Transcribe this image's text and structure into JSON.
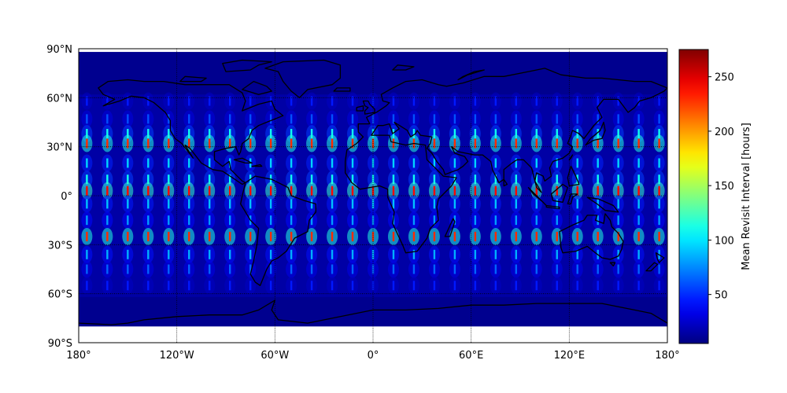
{
  "chart_data": {
    "type": "heatmap",
    "title": "",
    "projection": "equirectangular",
    "x_range": [
      -180,
      180
    ],
    "y_range": [
      -90,
      90
    ],
    "data_lat_range": [
      -80,
      88
    ],
    "x_ticks": [
      {
        "value": -180,
        "label": "180°"
      },
      {
        "value": -120,
        "label": "120°W"
      },
      {
        "value": -60,
        "label": "60°W"
      },
      {
        "value": 0,
        "label": "0°"
      },
      {
        "value": 60,
        "label": "60°E"
      },
      {
        "value": 120,
        "label": "120°E"
      },
      {
        "value": 180,
        "label": "180°"
      }
    ],
    "y_ticks": [
      {
        "value": 90,
        "label": "90°N"
      },
      {
        "value": 60,
        "label": "60°N"
      },
      {
        "value": 30,
        "label": "30°N"
      },
      {
        "value": 0,
        "label": "0°"
      },
      {
        "value": -30,
        "label": "30°S"
      },
      {
        "value": -60,
        "label": "60°S"
      },
      {
        "value": -90,
        "label": "90°S"
      }
    ],
    "grid": true,
    "coastlines": true,
    "colormap": "jet",
    "colorbar": {
      "label": "Mean Revisit Interval [hours]",
      "range": [
        5,
        275
      ],
      "ticks": [
        50,
        100,
        150,
        200,
        250
      ],
      "placement": "right"
    },
    "pattern": {
      "background_value": 15,
      "pole_value": 8,
      "streak_lon_spacing": 12.5,
      "streak_lon_offset": -175,
      "bands": [
        {
          "lat": 58,
          "value": 45
        },
        {
          "lat": 47,
          "value": 60
        },
        {
          "lat": 38,
          "value": 110
        },
        {
          "lat": 32,
          "value": 230
        },
        {
          "lat": 20,
          "value": 95
        },
        {
          "lat": 10,
          "value": 110
        },
        {
          "lat": 3,
          "value": 240
        },
        {
          "lat": -5,
          "value": 90
        },
        {
          "lat": -15,
          "value": 80
        },
        {
          "lat": -25,
          "value": 230
        },
        {
          "lat": -36,
          "value": 85
        },
        {
          "lat": -45,
          "value": 65
        },
        {
          "lat": -55,
          "value": 45
        }
      ]
    }
  }
}
